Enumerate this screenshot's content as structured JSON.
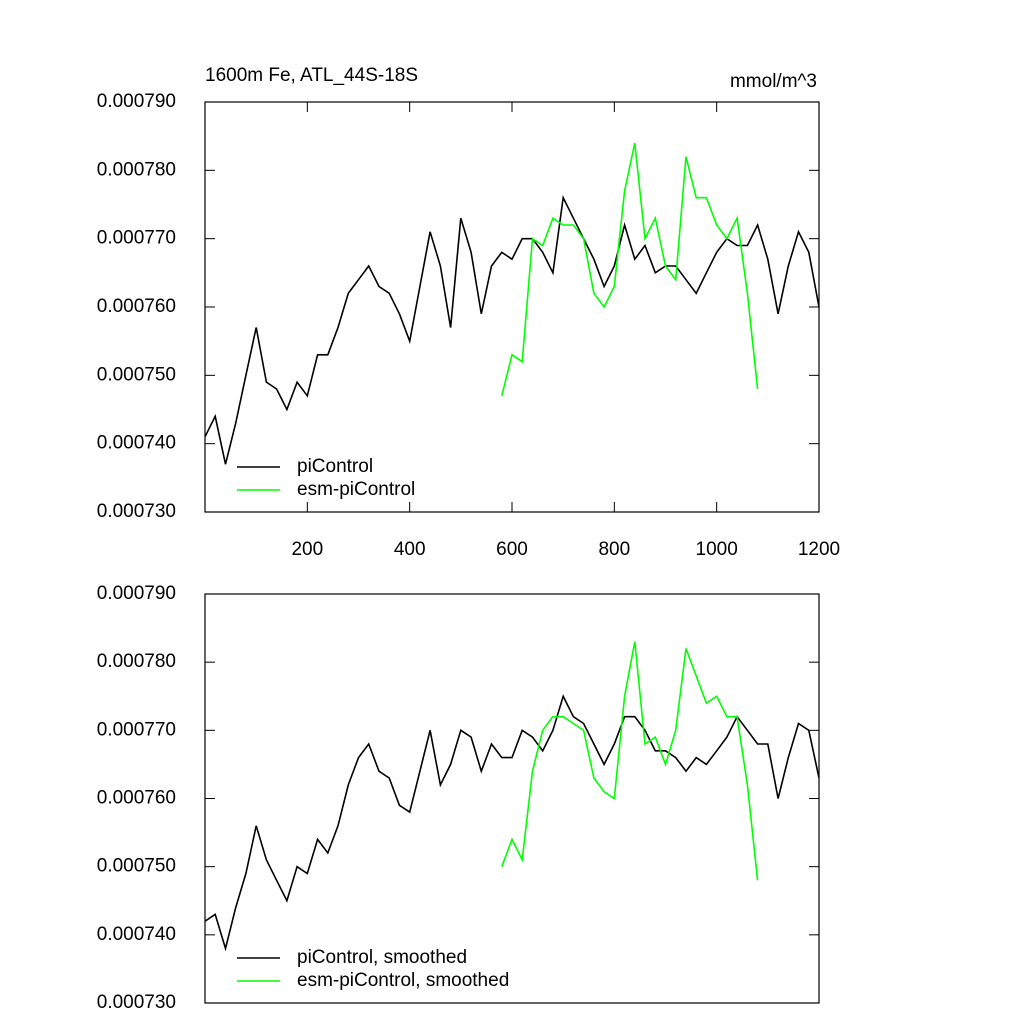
{
  "chart_data": [
    {
      "type": "line",
      "title": "1600m Fe, ATL_44S-18S",
      "units": "mmol/m^3",
      "x": [
        0,
        20,
        40,
        60,
        80,
        100,
        120,
        140,
        160,
        180,
        200,
        220,
        240,
        260,
        280,
        300,
        320,
        340,
        360,
        380,
        400,
        420,
        440,
        460,
        480,
        500,
        520,
        540,
        560,
        580,
        600,
        620,
        640,
        660,
        680,
        700,
        720,
        740,
        760,
        780,
        800,
        820,
        840,
        860,
        880,
        900,
        920,
        940,
        960,
        980,
        1000,
        1020,
        1040,
        1060,
        1080,
        1100,
        1120,
        1140,
        1160,
        1180,
        1200
      ],
      "xlim": [
        0,
        1200
      ],
      "xticks": [
        200,
        400,
        600,
        800,
        1000,
        1200
      ],
      "ylim": [
        0.00073,
        0.00079
      ],
      "yticks": [
        {
          "value": 0.00073,
          "label": "0.000730"
        },
        {
          "value": 0.00074,
          "label": "0.000740"
        },
        {
          "value": 0.00075,
          "label": "0.000750"
        },
        {
          "value": 0.00076,
          "label": "0.000760"
        },
        {
          "value": 0.00077,
          "label": "0.000770"
        },
        {
          "value": 0.00078,
          "label": "0.000780"
        },
        {
          "value": 0.00079,
          "label": "0.000790"
        }
      ],
      "legend": "bottom-left",
      "series": [
        {
          "name": "piControl",
          "color": "#000000",
          "values": [
            0.000741,
            0.000744,
            0.000737,
            0.000743,
            0.00075,
            0.000757,
            0.000749,
            0.000748,
            0.000745,
            0.000749,
            0.000747,
            0.000753,
            0.000753,
            0.000757,
            0.000762,
            0.000764,
            0.000766,
            0.000763,
            0.000762,
            0.000759,
            0.000755,
            0.000763,
            0.000771,
            0.000766,
            0.000757,
            0.000773,
            0.000768,
            0.000759,
            0.000766,
            0.000768,
            0.000767,
            0.00077,
            0.00077,
            0.000768,
            0.000765,
            0.000776,
            0.000773,
            0.00077,
            0.000767,
            0.000763,
            0.000766,
            0.000772,
            0.000767,
            0.000769,
            0.000765,
            0.000766,
            0.000766,
            0.000764,
            0.000762,
            0.000765,
            0.000768,
            0.00077,
            0.000769,
            0.000769,
            0.000772,
            0.000767,
            0.000759,
            0.000766,
            0.000771,
            0.000768,
            0.00076
          ]
        },
        {
          "name": "esm-piControl",
          "color": "#00ff00",
          "values": [
            null,
            null,
            null,
            null,
            null,
            null,
            null,
            null,
            null,
            null,
            null,
            null,
            null,
            null,
            null,
            null,
            null,
            null,
            null,
            null,
            null,
            null,
            null,
            null,
            null,
            null,
            null,
            null,
            null,
            0.000747,
            0.000753,
            0.000752,
            0.00077,
            0.000769,
            0.000773,
            0.000772,
            0.000772,
            0.00077,
            0.000762,
            0.00076,
            0.000763,
            0.000777,
            0.000784,
            0.00077,
            0.000773,
            0.000766,
            0.000764,
            0.000782,
            0.000776,
            0.000776,
            0.000772,
            0.00077,
            0.000773,
            0.000762,
            0.000748,
            null,
            null,
            null,
            null,
            null,
            null
          ]
        }
      ]
    },
    {
      "type": "line",
      "x": [
        0,
        20,
        40,
        60,
        80,
        100,
        120,
        140,
        160,
        180,
        200,
        220,
        240,
        260,
        280,
        300,
        320,
        340,
        360,
        380,
        400,
        420,
        440,
        460,
        480,
        500,
        520,
        540,
        560,
        580,
        600,
        620,
        640,
        660,
        680,
        700,
        720,
        740,
        760,
        780,
        800,
        820,
        840,
        860,
        880,
        900,
        920,
        940,
        960,
        980,
        1000,
        1020,
        1040,
        1060,
        1080,
        1100,
        1120,
        1140,
        1160,
        1180,
        1200
      ],
      "xlim": [
        0,
        1200
      ],
      "ylim": [
        0.00073,
        0.00079
      ],
      "yticks": [
        {
          "value": 0.00073,
          "label": "0.000730"
        },
        {
          "value": 0.00074,
          "label": "0.000740"
        },
        {
          "value": 0.00075,
          "label": "0.000750"
        },
        {
          "value": 0.00076,
          "label": "0.000760"
        },
        {
          "value": 0.00077,
          "label": "0.000770"
        },
        {
          "value": 0.00078,
          "label": "0.000780"
        },
        {
          "value": 0.00079,
          "label": "0.000790"
        }
      ],
      "legend": "bottom-left",
      "series": [
        {
          "name": "piControl, smoothed",
          "color": "#000000",
          "values": [
            0.000742,
            0.000743,
            0.000738,
            0.000744,
            0.000749,
            0.000756,
            0.000751,
            0.000748,
            0.000745,
            0.00075,
            0.000749,
            0.000754,
            0.000752,
            0.000756,
            0.000762,
            0.000766,
            0.000768,
            0.000764,
            0.000763,
            0.000759,
            0.000758,
            0.000764,
            0.00077,
            0.000762,
            0.000765,
            0.00077,
            0.000769,
            0.000764,
            0.000768,
            0.000766,
            0.000766,
            0.00077,
            0.000769,
            0.000767,
            0.00077,
            0.000775,
            0.000772,
            0.000771,
            0.000768,
            0.000765,
            0.000768,
            0.000772,
            0.000772,
            0.00077,
            0.000767,
            0.000767,
            0.000766,
            0.000764,
            0.000766,
            0.000765,
            0.000767,
            0.000769,
            0.000772,
            0.00077,
            0.000768,
            0.000768,
            0.00076,
            0.000766,
            0.000771,
            0.00077,
            0.000763
          ]
        },
        {
          "name": "esm-piControl, smoothed",
          "color": "#00ff00",
          "values": [
            null,
            null,
            null,
            null,
            null,
            null,
            null,
            null,
            null,
            null,
            null,
            null,
            null,
            null,
            null,
            null,
            null,
            null,
            null,
            null,
            null,
            null,
            null,
            null,
            null,
            null,
            null,
            null,
            null,
            0.00075,
            0.000754,
            0.000751,
            0.000764,
            0.00077,
            0.000772,
            0.000772,
            0.000771,
            0.00077,
            0.000763,
            0.000761,
            0.00076,
            0.000775,
            0.000783,
            0.000768,
            0.000769,
            0.000765,
            0.00077,
            0.000782,
            0.000778,
            0.000774,
            0.000775,
            0.000772,
            0.000772,
            0.000762,
            0.000748,
            null,
            null,
            null,
            null,
            null,
            null
          ]
        }
      ]
    }
  ]
}
